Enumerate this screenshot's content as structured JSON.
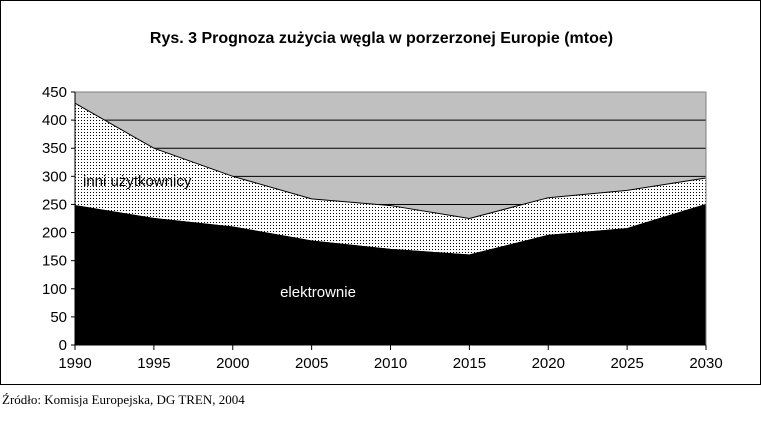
{
  "chart_data": {
    "type": "area",
    "stacked": true,
    "title": "Rys. 3 Prognoza zużycia węgla w porzerzonej Europie (mtoe)",
    "x": [
      1990,
      1995,
      2000,
      2005,
      2010,
      2015,
      2020,
      2025,
      2030
    ],
    "series": [
      {
        "name": "elektrownie",
        "values": [
          248,
          225,
          210,
          185,
          170,
          160,
          195,
          207,
          250
        ]
      },
      {
        "name": "inni użytkownicy",
        "values": [
          182,
          125,
          90,
          75,
          78,
          65,
          67,
          68,
          47
        ]
      }
    ],
    "ylim": [
      0,
      450
    ],
    "yticks": [
      0,
      50,
      100,
      150,
      200,
      250,
      300,
      350,
      400,
      450
    ],
    "grid": true,
    "plot_background": "#c0c0c0",
    "colors": {
      "elektrownie": "#000000",
      "inni użytkownicy": "#ffffff",
      "grid": "#000000"
    },
    "labels": {
      "elektrownie": "elektrownie",
      "inni_uzytkownicy": "inni użytkownicy"
    }
  },
  "source_note": "Źródło: Komisja Europejska, DG TREN, 2004"
}
